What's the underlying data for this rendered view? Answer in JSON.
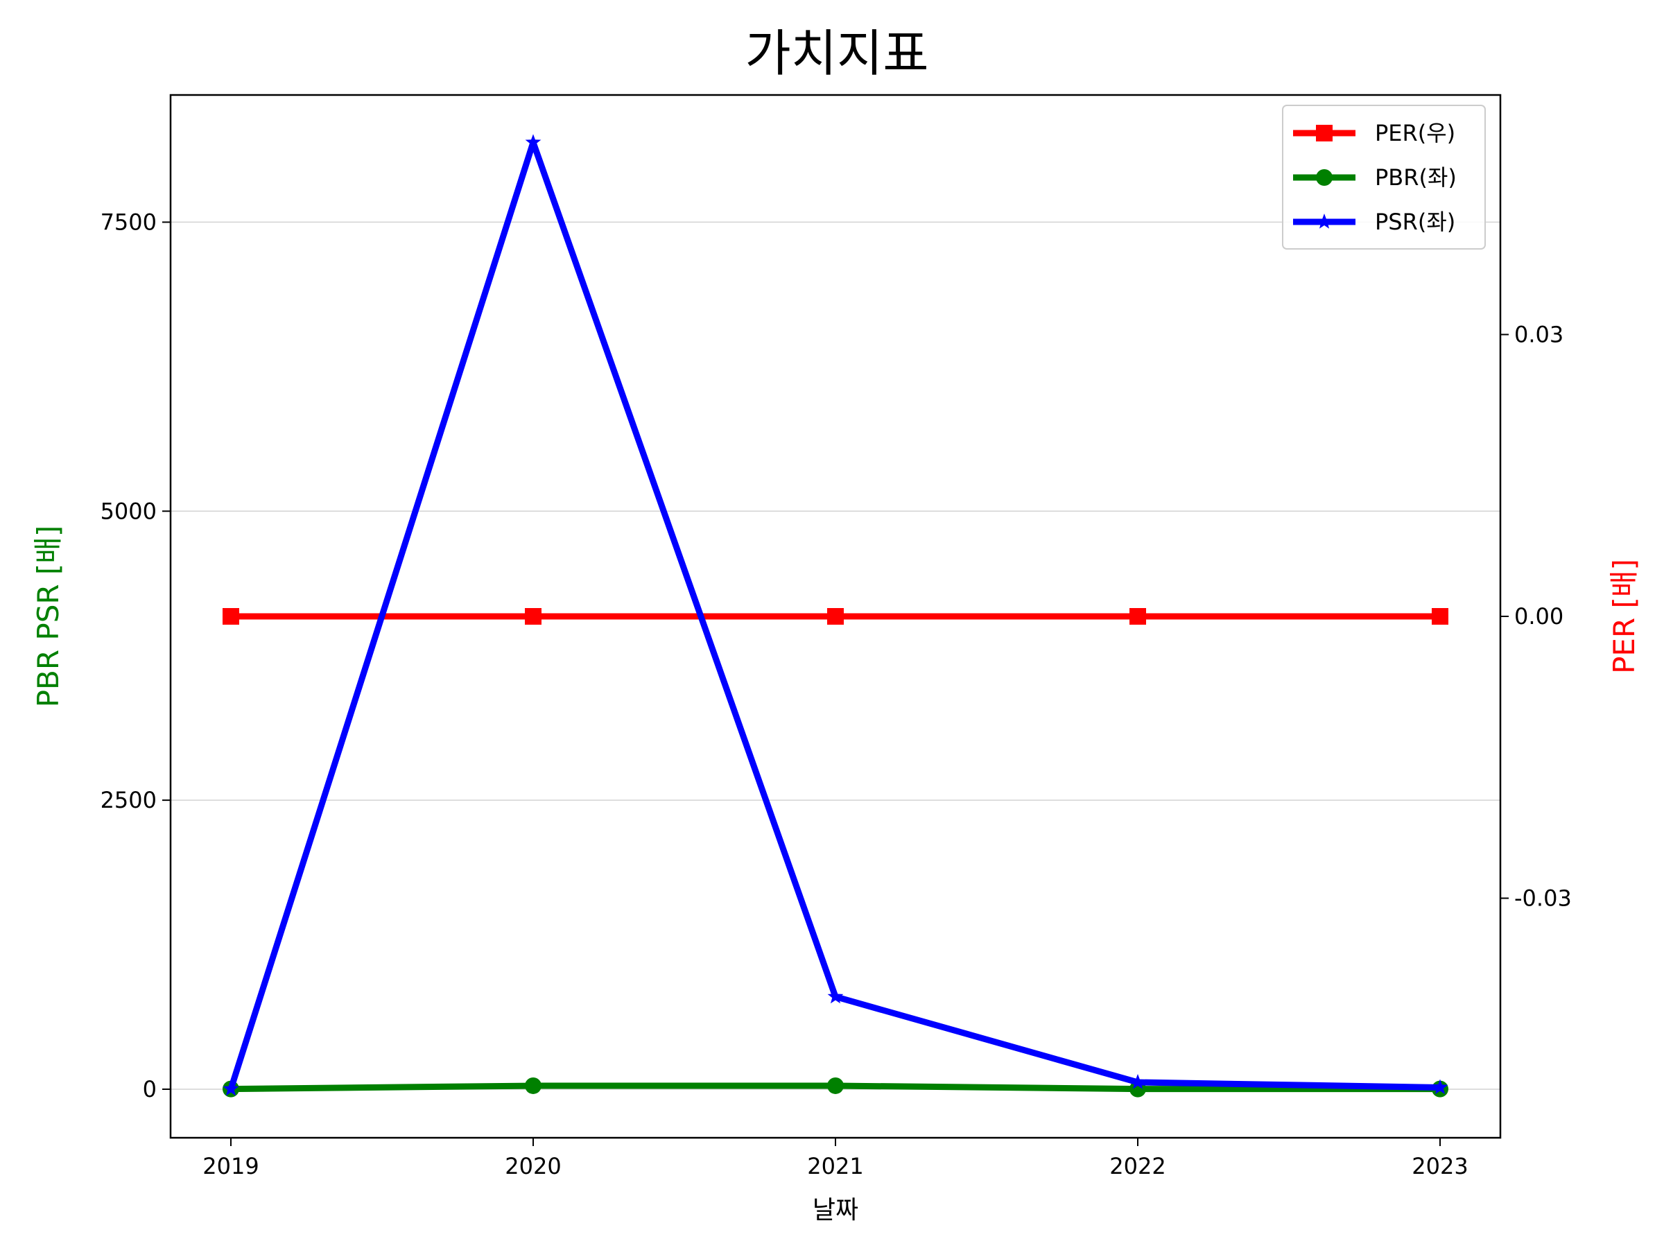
{
  "chart_data": {
    "type": "line",
    "title": "가치지표",
    "xlabel": "날짜",
    "ylabel_left": "PBR PSR [배]",
    "ylabel_right": "PER [배]",
    "categories": [
      "2019",
      "2020",
      "2021",
      "2022",
      "2023"
    ],
    "left_axis": {
      "ylim": [
        -420,
        8600
      ],
      "ticks": [
        0,
        2500,
        5000,
        7500
      ],
      "tick_labels": [
        "0",
        "2500",
        "5000",
        "7500"
      ],
      "grid": true
    },
    "right_axis": {
      "ylim": [
        -0.0555,
        0.0555
      ],
      "ticks": [
        -0.03,
        0.0,
        0.03
      ],
      "tick_labels": [
        "-0.03",
        "0.00",
        "0.03"
      ]
    },
    "series": [
      {
        "name": "PER(우)",
        "axis": "right",
        "color": "#ff0000",
        "marker": "square",
        "values": [
          0,
          0,
          0,
          0,
          0
        ]
      },
      {
        "name": "PBR(좌)",
        "axis": "left",
        "color": "#008000",
        "marker": "circle",
        "values": [
          2,
          30,
          30,
          2,
          2
        ]
      },
      {
        "name": "PSR(좌)",
        "axis": "left",
        "color": "#0000ff",
        "marker": "star",
        "values": [
          2,
          8190,
          800,
          60,
          15
        ]
      }
    ],
    "legend": {
      "position": "top-right",
      "order": [
        "PER(우)",
        "PBR(좌)",
        "PSR(좌)"
      ]
    },
    "ylabel_left_color": "#008000",
    "ylabel_right_color": "#ff0000"
  }
}
